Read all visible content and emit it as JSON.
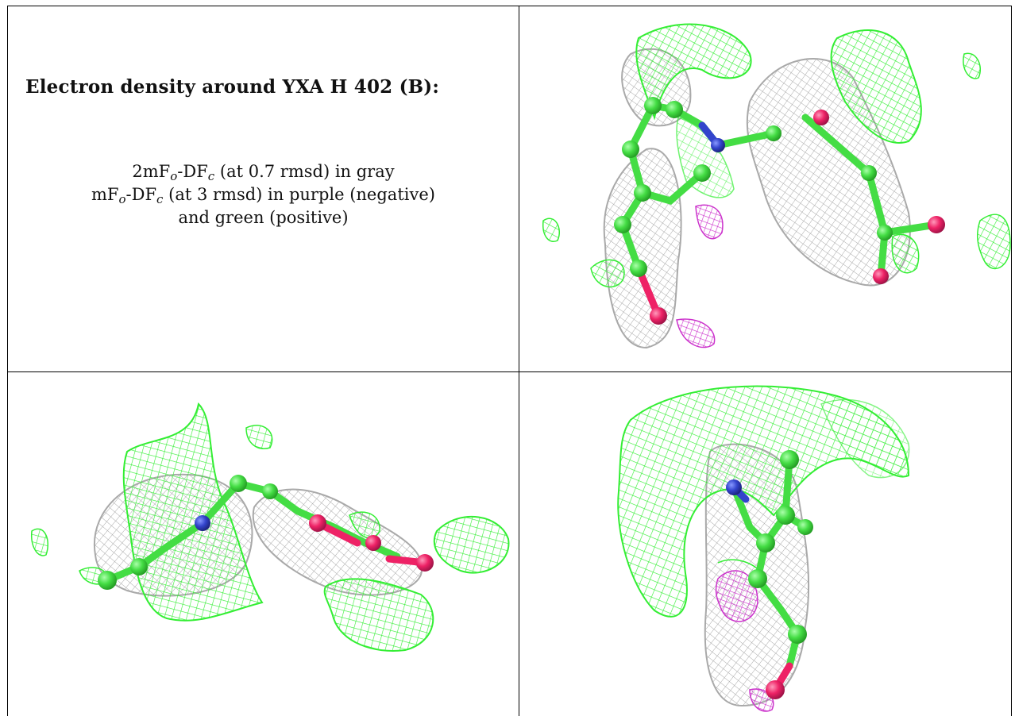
{
  "header": {
    "title": "Electron density around YXA H 402 (B):"
  },
  "legend": {
    "line1_pre": "2mF",
    "line1_sub1": "o",
    "line1_mid": "-DF",
    "line1_sub2": "c",
    "line1_post": " (at 0.7 rmsd) in gray",
    "line2_pre": "mF",
    "line2_sub1": "o",
    "line2_mid": "-DF",
    "line2_sub2": "c",
    "line2_post": " (at 3 rmsd) in purple (negative)",
    "line3": "and green (positive)"
  },
  "colors": {
    "positive_map": "#33ee33",
    "negative_map": "#cc33cc",
    "twofofc_map": "#a9a9a9",
    "carbon": "#44dd44",
    "nitrogen": "#3344cc",
    "oxygen": "#ee2266"
  },
  "panels": [
    {
      "view": "front"
    },
    {
      "view": "side"
    },
    {
      "view": "top"
    }
  ]
}
